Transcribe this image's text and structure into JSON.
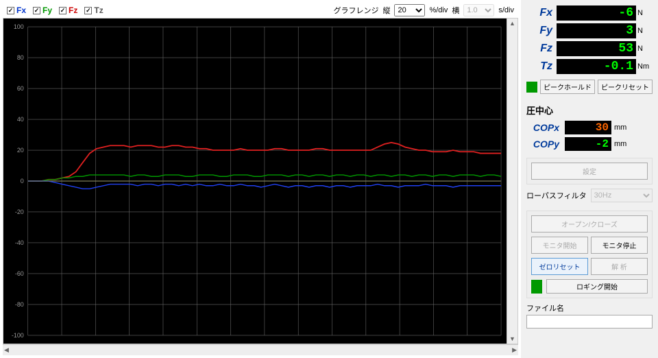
{
  "legend": [
    {
      "label": "Fx",
      "color": "#0033cc",
      "checked": true
    },
    {
      "label": "Fy",
      "color": "#009900",
      "checked": true
    },
    {
      "label": "Fz",
      "color": "#cc0000",
      "checked": true
    },
    {
      "label": "Tz",
      "color": "#555555",
      "checked": true
    }
  ],
  "range": {
    "label": "グラフレンジ",
    "vert_prefix": "縦",
    "vert_value": "20",
    "vert_unit": "%/div",
    "horiz_prefix": "横",
    "horiz_value": "1.0",
    "horiz_unit": "s/div"
  },
  "chart": {
    "background": "#000000",
    "grid_color": "#666666",
    "axis_color": "#b0b000",
    "label_color": "#999999",
    "ylim": [
      -100,
      100
    ],
    "ytick_step": 20,
    "x_divisions": 14,
    "series": [
      {
        "name": "Fz",
        "color": "#e02020",
        "width": 1.8,
        "data": [
          0,
          0,
          0,
          1,
          1,
          2,
          3,
          6,
          12,
          18,
          21,
          22,
          23,
          23,
          23,
          22,
          23,
          23,
          23,
          22,
          22,
          23,
          23,
          22,
          22,
          21,
          21,
          20,
          20,
          20,
          20,
          21,
          20,
          20,
          20,
          20,
          21,
          21,
          20,
          20,
          20,
          20,
          21,
          21,
          20,
          20,
          20,
          20,
          20,
          20,
          20,
          22,
          24,
          25,
          24,
          22,
          21,
          20,
          20,
          19,
          19,
          19,
          20,
          19,
          19,
          19,
          18,
          18,
          18,
          18
        ]
      },
      {
        "name": "Fy",
        "color": "#009900",
        "width": 1.4,
        "data": [
          0,
          0,
          0,
          1,
          1,
          2,
          2,
          3,
          3,
          4,
          4,
          4,
          4,
          4,
          4,
          3,
          4,
          4,
          3,
          3,
          4,
          4,
          4,
          3,
          3,
          4,
          4,
          4,
          3,
          3,
          4,
          4,
          4,
          3,
          3,
          4,
          4,
          4,
          3,
          4,
          4,
          3,
          4,
          4,
          3,
          4,
          4,
          3,
          4,
          4,
          3,
          4,
          4,
          3,
          4,
          4,
          3,
          4,
          4,
          3,
          4,
          4,
          3,
          4,
          4,
          4,
          3,
          4,
          4,
          3
        ]
      },
      {
        "name": "Fx",
        "color": "#2040f0",
        "width": 1.4,
        "data": [
          0,
          0,
          0,
          0,
          -1,
          -2,
          -3,
          -4,
          -5,
          -5,
          -4,
          -3,
          -2,
          -2,
          -2,
          -2,
          -3,
          -2,
          -2,
          -3,
          -2,
          -2,
          -3,
          -2,
          -3,
          -2,
          -3,
          -3,
          -2,
          -3,
          -3,
          -2,
          -3,
          -3,
          -4,
          -3,
          -2,
          -3,
          -4,
          -3,
          -3,
          -4,
          -3,
          -3,
          -4,
          -3,
          -3,
          -4,
          -3,
          -3,
          -3,
          -2,
          -3,
          -3,
          -4,
          -3,
          -3,
          -3,
          -2,
          -3,
          -3,
          -3,
          -4,
          -3,
          -3,
          -3,
          -3,
          -3,
          -3,
          -3
        ]
      },
      {
        "name": "Tz",
        "color": "#707070",
        "width": 1.0,
        "data": [
          0,
          0,
          0,
          0,
          0,
          0,
          0,
          0,
          0,
          0,
          0,
          0,
          0,
          0,
          0,
          0,
          0,
          0,
          0,
          0,
          0,
          0,
          0,
          0,
          0,
          0,
          0,
          0,
          0,
          0,
          0,
          0,
          0,
          0,
          0,
          0,
          0,
          0,
          0,
          0,
          0,
          0,
          0,
          0,
          0,
          0,
          0,
          0,
          0,
          0,
          0,
          0,
          0,
          0,
          0,
          0,
          0,
          0,
          0,
          0,
          0,
          0,
          0,
          0,
          0,
          0,
          0,
          0,
          0,
          0
        ]
      }
    ]
  },
  "readouts": [
    {
      "name": "Fx",
      "value": "-6",
      "color": "#00ff00",
      "unit": "N"
    },
    {
      "name": "Fy",
      "value": "3",
      "color": "#00ff00",
      "unit": "N"
    },
    {
      "name": "Fz",
      "value": "53",
      "color": "#00ff00",
      "unit": "N"
    },
    {
      "name": "Tz",
      "value": "-0.1",
      "color": "#00ff00",
      "unit": "Nm"
    }
  ],
  "peak": {
    "hold_label": "ピークホールド",
    "reset_label": "ピークリセット"
  },
  "cop": {
    "title": "圧中心",
    "rows": [
      {
        "name": "COPx",
        "value": "30",
        "color": "#ff6600",
        "unit": "mm"
      },
      {
        "name": "COPy",
        "value": "-2",
        "color": "#00ff00",
        "unit": "mm"
      }
    ]
  },
  "buttons": {
    "settings": "設定",
    "lpf_label": "ローパスフィルタ",
    "lpf_value": "30Hz",
    "open_close": "オープン/クローズ",
    "monitor_start": "モニタ開始",
    "monitor_stop": "モニタ停止",
    "zero_reset": "ゼロリセット",
    "unload": "解 析",
    "log_start": "ロギング開始",
    "filename_label": "ファイル名"
  }
}
